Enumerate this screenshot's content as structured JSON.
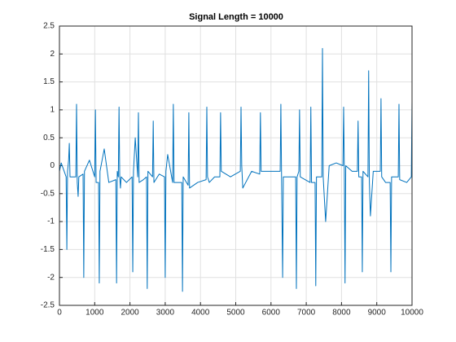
{
  "chart_data": {
    "type": "line",
    "title": "Signal Length = 10000",
    "series": [
      {
        "color": "#0072bd",
        "x": [
          0,
          50,
          190,
          210,
          230,
          260,
          280,
          300,
          465,
          485,
          505,
          530,
          550,
          670,
          690,
          710,
          850,
          1000,
          1020,
          1040,
          1110,
          1130,
          1150,
          1270,
          1400,
          1600,
          1620,
          1640,
          1670,
          1690,
          1710,
          1730,
          1750,
          1900,
          2060,
          2080,
          2100,
          2150,
          2220,
          2240,
          2260,
          2380,
          2470,
          2490,
          2510,
          2640,
          2660,
          2680,
          2830,
          2980,
          3000,
          3020,
          3070,
          3210,
          3230,
          3250,
          3360,
          3470,
          3490,
          3510,
          3650,
          3670,
          3690,
          3920,
          4160,
          4180,
          4200,
          4250,
          4400,
          4550,
          4570,
          4590,
          4850,
          5130,
          5150,
          5170,
          5200,
          5450,
          5680,
          5700,
          5720,
          6000,
          6260,
          6280,
          6300,
          6330,
          6350,
          6500,
          6700,
          6720,
          6740,
          6790,
          6810,
          6830,
          6970,
          7110,
          7130,
          7150,
          7250,
          7270,
          7290,
          7440,
          7460,
          7480,
          7550,
          7650,
          7850,
          8040,
          8060,
          8080,
          8100,
          8120,
          8300,
          8450,
          8470,
          8490,
          8570,
          8590,
          8610,
          8750,
          8770,
          8790,
          8820,
          8900,
          9100,
          9120,
          9140,
          9250,
          9380,
          9400,
          9420,
          9610,
          9630,
          9650,
          9850,
          9980,
          10000
        ],
        "values": [
          -0.1,
          0.05,
          -0.2,
          -1.5,
          -0.1,
          0.1,
          0.4,
          -0.2,
          -0.2,
          1.1,
          -0.3,
          -0.55,
          -0.2,
          -0.15,
          -2.0,
          -0.1,
          0.1,
          -0.2,
          1.0,
          -0.3,
          -0.3,
          -2.1,
          -0.1,
          0.3,
          -0.3,
          -0.25,
          -2.1,
          -0.1,
          -0.2,
          1.05,
          -0.2,
          -0.4,
          -0.2,
          -0.3,
          -0.2,
          -1.9,
          -0.1,
          0.5,
          -0.2,
          0.95,
          -0.3,
          -0.25,
          -0.2,
          -2.2,
          -0.1,
          -0.2,
          0.8,
          -0.3,
          -0.15,
          -0.2,
          -2.0,
          -0.1,
          0.2,
          -0.3,
          1.1,
          -0.3,
          -0.3,
          -0.3,
          -2.25,
          -0.2,
          -0.35,
          0.95,
          -0.4,
          -0.3,
          -0.25,
          1.05,
          -0.2,
          -0.3,
          -0.2,
          -0.2,
          0.95,
          -0.1,
          -0.2,
          -0.1,
          1.05,
          0.0,
          -0.4,
          -0.1,
          -0.15,
          0.95,
          -0.1,
          -0.1,
          -0.1,
          1.1,
          -0.2,
          -2.0,
          -0.2,
          -0.2,
          -0.2,
          -2.2,
          -0.2,
          -0.1,
          1.0,
          -0.2,
          -0.25,
          -0.3,
          1.05,
          -0.3,
          -0.3,
          -2.15,
          -0.2,
          -0.2,
          2.1,
          -0.2,
          -1.0,
          0.0,
          0.05,
          0.0,
          1.05,
          -0.1,
          -2.1,
          0.0,
          -0.1,
          -0.1,
          0.8,
          -0.2,
          -0.2,
          -1.9,
          -0.1,
          -0.2,
          1.7,
          -0.3,
          -0.9,
          -0.1,
          -0.1,
          1.2,
          -0.2,
          -0.3,
          -0.3,
          -1.9,
          -0.2,
          -0.2,
          1.1,
          -0.25,
          -0.3,
          -0.2,
          1.15
        ]
      }
    ],
    "xlim": [
      0,
      10000
    ],
    "xticks": [
      0,
      1000,
      2000,
      3000,
      4000,
      5000,
      6000,
      7000,
      8000,
      9000,
      10000
    ],
    "ylim": [
      -2.5,
      2.5
    ],
    "yticks": [
      -2.5,
      -2,
      -1.5,
      -1,
      -0.5,
      0,
      0.5,
      1,
      1.5,
      2,
      2.5
    ],
    "grid": true
  }
}
